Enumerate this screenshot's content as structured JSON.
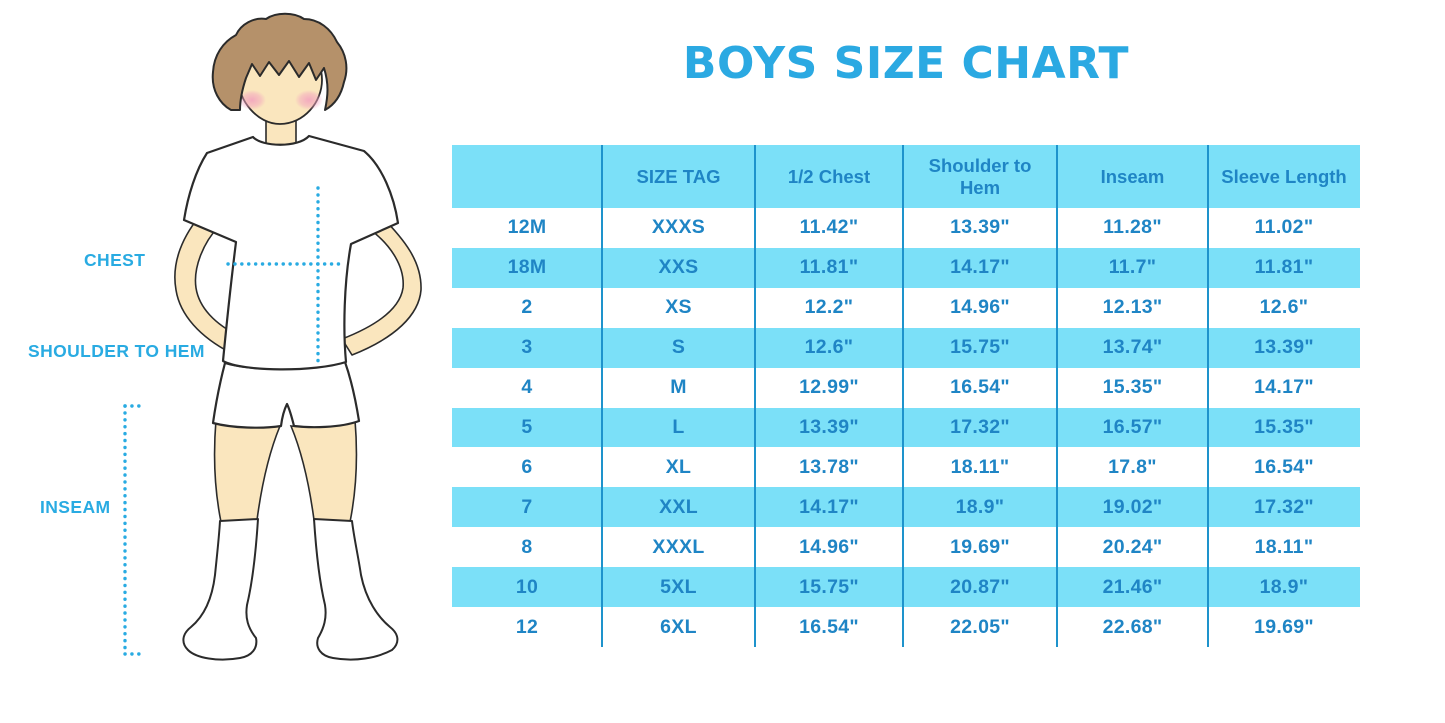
{
  "title": "BOYS SIZE CHART",
  "figure": {
    "labels": {
      "chest": "CHEST",
      "shoulder_to_hem": "SHOULDER TO HEM",
      "inseam": "INSEAM"
    }
  },
  "colors": {
    "title_blue": "#2BA9E2",
    "label_blue": "#29ABE2",
    "dotted_line": "#29ABE2",
    "table_text": "#1F85C5",
    "row_band_cyan": "#7BE0F8",
    "column_divider": "#1E93CC",
    "skin": "#FAE6BE",
    "hair": "#B5916A",
    "blush": "#F2A0BE",
    "outline": "#2b2b2b"
  },
  "chart_data": {
    "type": "table",
    "title": "BOYS SIZE CHART",
    "columns": [
      "",
      "SIZE TAG",
      "1/2 Chest",
      "Shoulder to Hem",
      "Inseam",
      "Sleeve Length"
    ],
    "rows": [
      [
        "12M",
        "XXXS",
        "11.42\"",
        "13.39\"",
        "11.28\"",
        "11.02\""
      ],
      [
        "18M",
        "XXS",
        "11.81\"",
        "14.17\"",
        "11.7\"",
        "11.81\""
      ],
      [
        "2",
        "XS",
        "12.2\"",
        "14.96\"",
        "12.13\"",
        "12.6\""
      ],
      [
        "3",
        "S",
        "12.6\"",
        "15.75\"",
        "13.74\"",
        "13.39\""
      ],
      [
        "4",
        "M",
        "12.99\"",
        "16.54\"",
        "15.35\"",
        "14.17\""
      ],
      [
        "5",
        "L",
        "13.39\"",
        "17.32\"",
        "16.57\"",
        "15.35\""
      ],
      [
        "6",
        "XL",
        "13.78\"",
        "18.11\"",
        "17.8\"",
        "16.54\""
      ],
      [
        "7",
        "XXL",
        "14.17\"",
        "18.9\"",
        "19.02\"",
        "17.32\""
      ],
      [
        "8",
        "XXXL",
        "14.96\"",
        "19.69\"",
        "20.24\"",
        "18.11\""
      ],
      [
        "10",
        "5XL",
        "15.75\"",
        "20.87\"",
        "21.46\"",
        "18.9\""
      ],
      [
        "12",
        "6XL",
        "16.54\"",
        "22.05\"",
        "22.68\"",
        "19.69\""
      ]
    ],
    "banded_row_indices": [
      1,
      3,
      5,
      7,
      9
    ],
    "legend_position": "none",
    "grid": "column-dividers-only"
  }
}
